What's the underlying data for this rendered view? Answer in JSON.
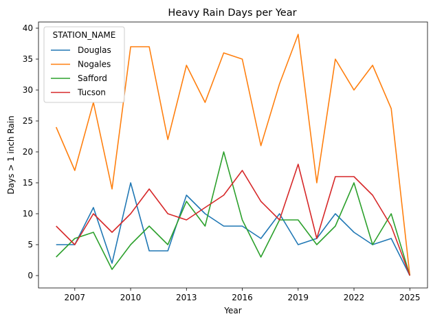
{
  "chart_data": {
    "type": "line",
    "title": "Heavy Rain Days per Year",
    "xlabel": "Year",
    "ylabel": "Days > 1 inch Rain",
    "x": [
      2006,
      2007,
      2008,
      2009,
      2010,
      2011,
      2012,
      2013,
      2014,
      2015,
      2016,
      2017,
      2018,
      2019,
      2020,
      2021,
      2022,
      2023,
      2024,
      2025
    ],
    "xticks": [
      2007,
      2010,
      2013,
      2016,
      2019,
      2022,
      2025
    ],
    "yticks": [
      0,
      5,
      10,
      15,
      20,
      25,
      30,
      35,
      40
    ],
    "xlim": [
      2005.05,
      2025.95
    ],
    "ylim": [
      -2,
      41
    ],
    "grid": false,
    "legend_title": "STATION_NAME",
    "legend_position": "top-left",
    "series": [
      {
        "name": "Douglas",
        "color": "#1f77b4",
        "values": [
          5,
          5,
          11,
          2,
          15,
          4,
          4,
          13,
          10,
          8,
          8,
          6,
          10,
          5,
          6,
          10,
          7,
          5,
          6,
          0
        ]
      },
      {
        "name": "Nogales",
        "color": "#ff7f0e",
        "values": [
          24,
          17,
          28,
          14,
          37,
          37,
          22,
          34,
          28,
          36,
          35,
          21,
          31,
          39,
          15,
          35,
          30,
          34,
          27,
          0
        ]
      },
      {
        "name": "Safford",
        "color": "#2ca02c",
        "values": [
          3,
          6,
          7,
          1,
          5,
          8,
          5,
          12,
          8,
          20,
          9,
          3,
          9,
          9,
          5,
          8,
          15,
          5,
          10,
          0
        ]
      },
      {
        "name": "Tucson",
        "color": "#d62728",
        "values": [
          8,
          5,
          10,
          7,
          10,
          14,
          10,
          9,
          11,
          13,
          17,
          12,
          9,
          18,
          6,
          16,
          16,
          13,
          8,
          0
        ]
      }
    ]
  }
}
